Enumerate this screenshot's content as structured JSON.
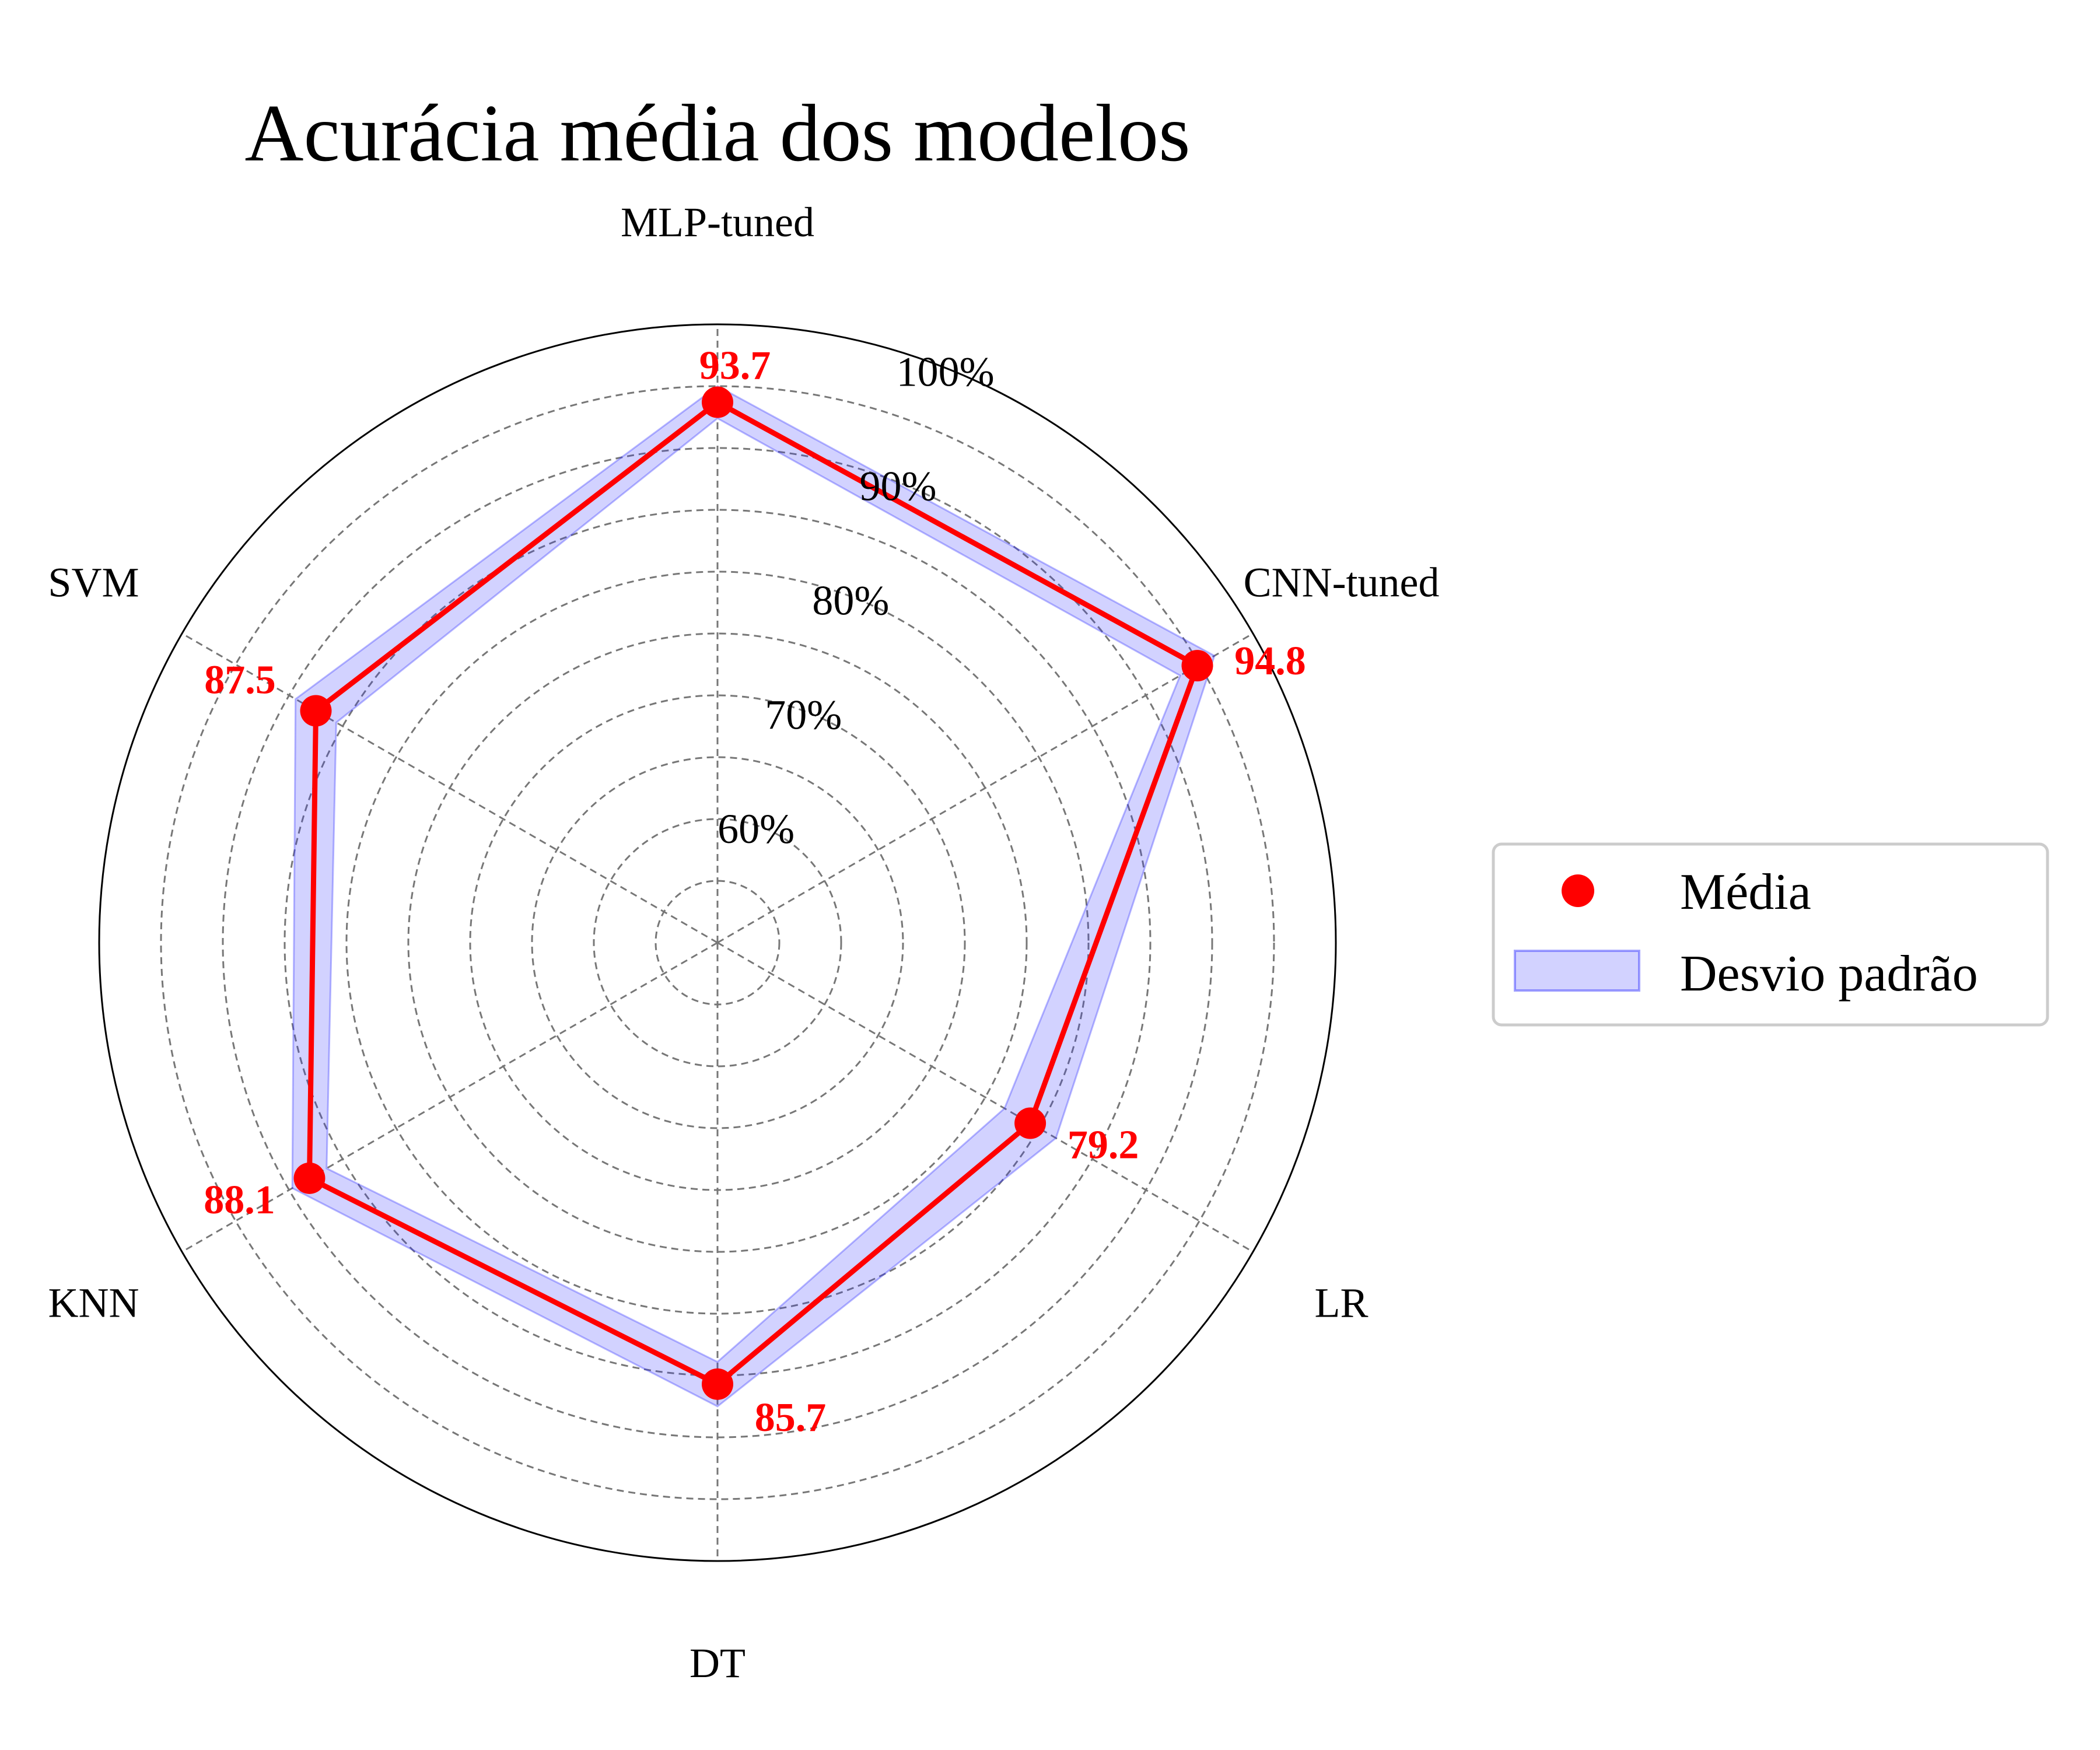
{
  "chart_data": {
    "type": "radar",
    "title": "Acurácia média dos modelos",
    "categories": [
      "MLP-tuned",
      "CNN-tuned",
      "LR",
      "DT",
      "KNN",
      "SVM"
    ],
    "series": [
      {
        "name": "Média",
        "values": [
          93.7,
          94.8,
          79.2,
          85.7,
          88.1,
          87.5
        ],
        "color": "#ff0000"
      }
    ],
    "band": {
      "name": "Desvio padrão",
      "lower": [
        92.4,
        93.2,
        76.8,
        83.9,
        86.5,
        85.6
      ],
      "upper": [
        95.0,
        96.4,
        81.6,
        87.5,
        89.7,
        89.4
      ],
      "color": "#3333ff"
    },
    "value_labels": [
      "93.7",
      "94.8",
      "79.2",
      "85.7",
      "88.1",
      "87.5"
    ],
    "rlim": [
      50,
      100
    ],
    "r_ticks": [
      60,
      70,
      80,
      90,
      100
    ],
    "r_tick_labels": [
      "60%",
      "70%",
      "80%",
      "90%",
      "100%"
    ],
    "grid": true,
    "legend_position": "right",
    "legend": [
      "Média",
      "Desvio padrão"
    ]
  }
}
